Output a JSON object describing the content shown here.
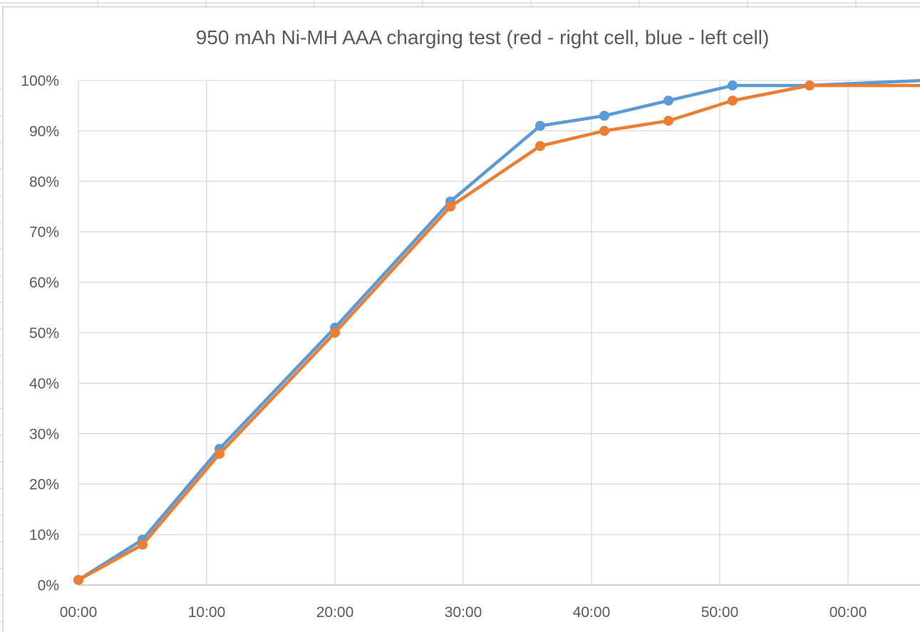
{
  "worksheet": {
    "background_color": "#ffffff",
    "sheet_gridline_color": "#d4d4d4",
    "chart_border_color": "#d9d9d9"
  },
  "chart_data": {
    "type": "line",
    "title": "950 mAh Ni-MH AAA charging test (red - right cell, blue - left cell)",
    "title_color": "#595959",
    "xlabel": "",
    "ylabel": "",
    "grid": "both",
    "legend_position": "none",
    "gridline_color": "#d9d9d9",
    "x_axis": {
      "tick_labels": [
        "00:00",
        "10:00",
        "20:00",
        "30:00",
        "40:00",
        "50:00",
        "00:00"
      ],
      "tick_minutes": [
        0,
        10,
        20,
        30,
        40,
        50,
        60
      ],
      "visible_range_minutes": [
        0,
        65.6
      ],
      "axis_line_color": "#bfbfbf",
      "label_color": "#595959"
    },
    "y_axis": {
      "tick_labels": [
        "0%",
        "10%",
        "20%",
        "30%",
        "40%",
        "50%",
        "60%",
        "70%",
        "80%",
        "90%",
        "100%"
      ],
      "tick_values": [
        0,
        10,
        20,
        30,
        40,
        50,
        60,
        70,
        80,
        90,
        100
      ],
      "ylim": [
        0,
        100
      ],
      "label_color": "#595959"
    },
    "series": [
      {
        "name": "left cell",
        "color": "#5B9BD5",
        "marker": "circle",
        "x_minutes": [
          0,
          5,
          11,
          20,
          29,
          36,
          41,
          46,
          51,
          57
        ],
        "x_time_labels": [
          "00:00",
          "05:00",
          "11:00",
          "20:00",
          "29:00",
          "36:00",
          "41:00",
          "46:00",
          "51:00",
          "57:00"
        ],
        "values_percent": [
          1,
          9,
          27,
          51,
          76,
          91,
          93,
          96,
          99,
          99
        ],
        "line_continues_offscreen_to": {
          "x_minutes": 66,
          "value_percent": 100
        }
      },
      {
        "name": "right cell",
        "color": "#ED7D31",
        "marker": "circle",
        "x_minutes": [
          0,
          5,
          11,
          20,
          29,
          36,
          41,
          46,
          51,
          57
        ],
        "x_time_labels": [
          "00:00",
          "05:00",
          "11:00",
          "20:00",
          "29:00",
          "36:00",
          "41:00",
          "46:00",
          "51:00",
          "57:00"
        ],
        "values_percent": [
          1,
          8,
          26,
          50,
          75,
          87,
          90,
          92,
          96,
          99
        ],
        "line_continues_offscreen_to": {
          "x_minutes": 66,
          "value_percent": 99
        }
      }
    ]
  }
}
